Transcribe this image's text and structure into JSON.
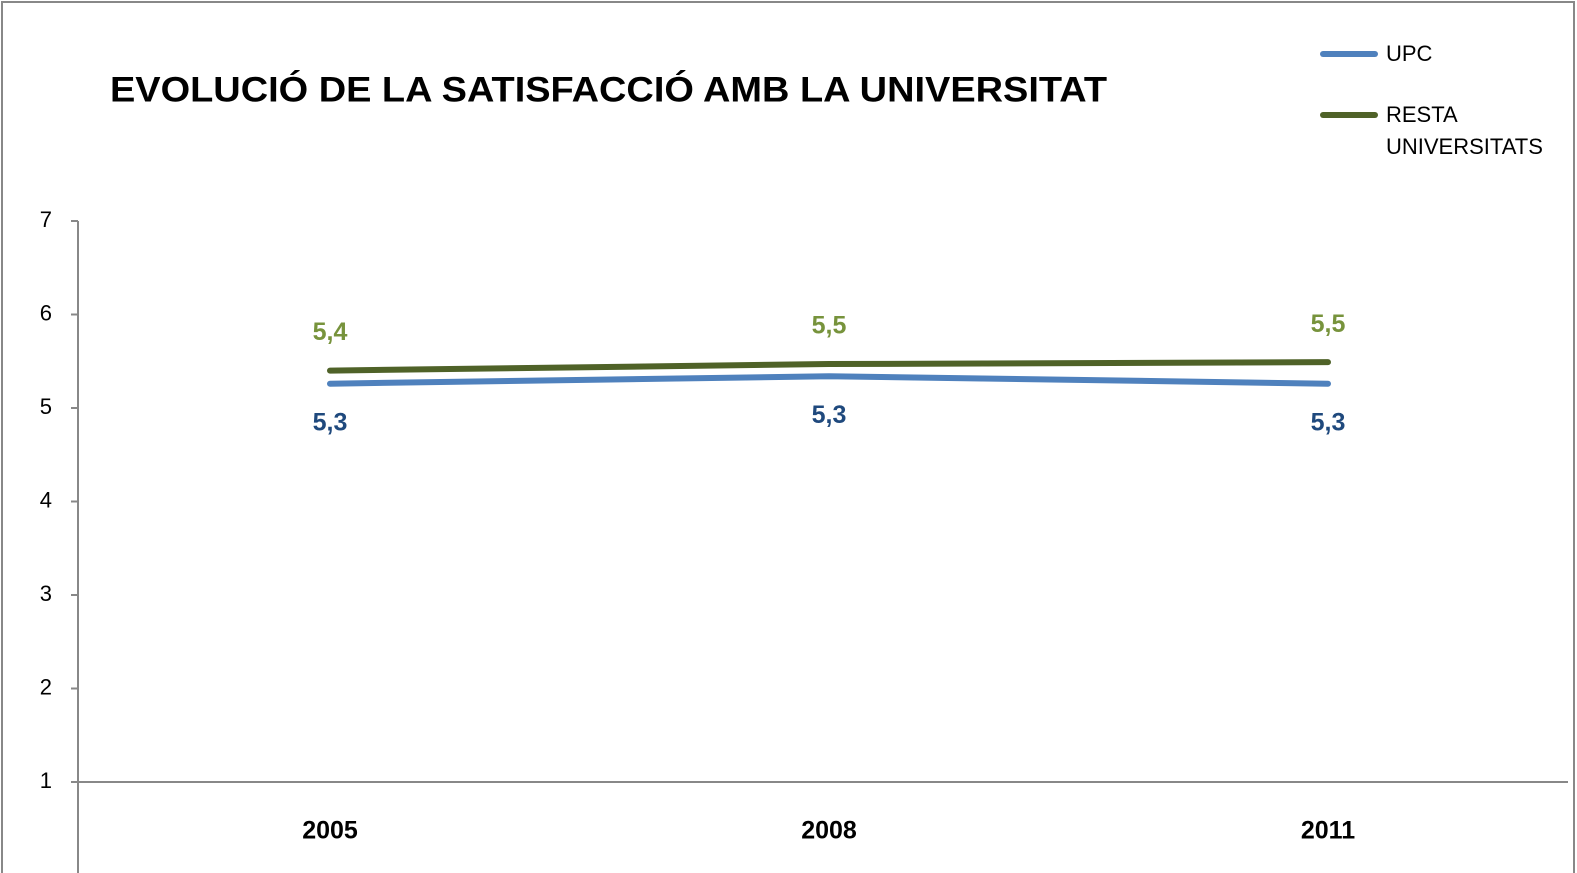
{
  "chart_data": {
    "type": "line",
    "title": "EVOLUCIÓ DE LA SATISFACCIÓ AMB LA UNIVERSITAT",
    "categories": [
      "2005",
      "2008",
      "2011"
    ],
    "series": [
      {
        "name": "UPC",
        "color": "#4f81bd",
        "label_color": "#1f497d",
        "values": [
          5.26,
          5.34,
          5.26
        ],
        "value_labels": [
          "5,3",
          "5,3",
          "5,3"
        ]
      },
      {
        "name": "RESTA UNIVERSITATS",
        "color": "#4f6228",
        "label_color": "#77933c",
        "values": [
          5.4,
          5.47,
          5.49
        ],
        "value_labels": [
          "5,4",
          "5,5",
          "5,5"
        ]
      }
    ],
    "ylim": [
      1,
      7
    ],
    "yticks": [
      1,
      2,
      3,
      4,
      5,
      6,
      7
    ],
    "legend": "top-right"
  }
}
